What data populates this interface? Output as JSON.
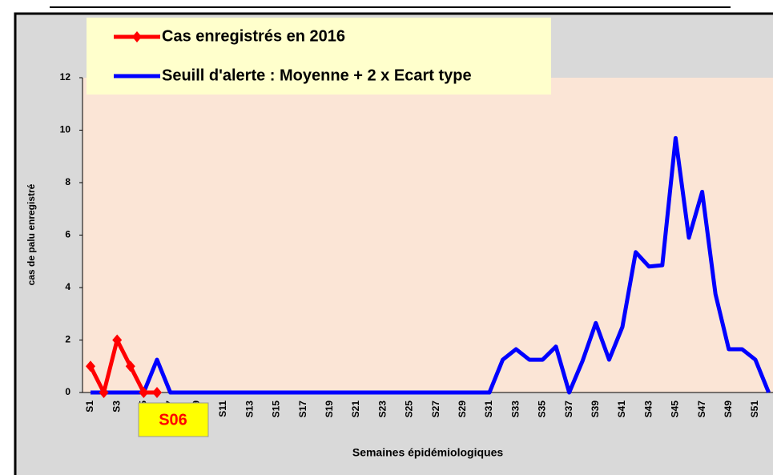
{
  "chart_data": {
    "type": "line",
    "categories": [
      "S1",
      null,
      "S3",
      null,
      "S5",
      null,
      "S7",
      null,
      "S9",
      null,
      "S11",
      null,
      "S13",
      null,
      "S15",
      null,
      "S17",
      null,
      "S19",
      null,
      "S21",
      null,
      "S23",
      null,
      "S25",
      null,
      "S27",
      null,
      "S29",
      null,
      "S31",
      null,
      "S33",
      null,
      "S35",
      null,
      "S37",
      null,
      "S39",
      null,
      "S41",
      null,
      "S43",
      null,
      "S45",
      null,
      "S47",
      null,
      "S49",
      null,
      "S51",
      null
    ],
    "series": [
      {
        "name": "Cas enregistrés en 2016",
        "color": "#ff0000",
        "values": [
          1,
          0,
          2,
          1,
          0,
          0,
          null,
          null,
          null,
          null,
          null,
          null,
          null,
          null,
          null,
          null,
          null,
          null,
          null,
          null,
          null,
          null,
          null,
          null,
          null,
          null,
          null,
          null,
          null,
          null,
          null,
          null,
          null,
          null,
          null,
          null,
          null,
          null,
          null,
          null,
          null,
          null,
          null,
          null,
          null,
          null,
          null,
          null,
          null,
          null,
          null,
          null
        ]
      },
      {
        "name": "Seuill d'alerte : Moyenne + 2 x Ecart type",
        "color": "#0000ff",
        "values": [
          0,
          0,
          0,
          0,
          0,
          1.25,
          0,
          0,
          0,
          0,
          0,
          0,
          0,
          0,
          0,
          0,
          0,
          0,
          0,
          0,
          0,
          0,
          0,
          0,
          0,
          0,
          0,
          0,
          0,
          0,
          0,
          1.25,
          1.65,
          1.25,
          1.25,
          1.75,
          0,
          1.2,
          2.65,
          1.25,
          2.5,
          5.35,
          4.8,
          4.85,
          9.7,
          5.9,
          7.65,
          3.75,
          1.65,
          1.65,
          1.25,
          0
        ]
      }
    ],
    "ylim": [
      0,
      12
    ],
    "yticks": [
      0,
      2,
      4,
      6,
      8,
      10,
      12
    ],
    "ylabel": "cas de palu enregistré",
    "xlabel": "Semaines épidémiologiques",
    "annotation": "S06",
    "grid": false
  }
}
